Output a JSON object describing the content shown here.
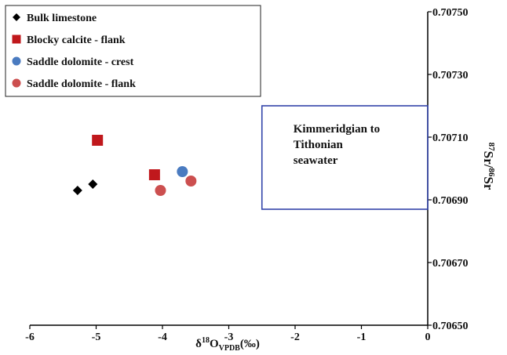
{
  "chart_data": {
    "type": "scatter",
    "xlabel": {
      "main": "δ",
      "sup": "18",
      "sym": "O",
      "sub": "VPDB",
      "unit": "(‰)"
    },
    "ylabel": {
      "sup1": "87",
      "a": "Sr/",
      "sup2": "86",
      "b": "Sr"
    },
    "xlim": [
      -6,
      0
    ],
    "ylim": [
      0.7065,
      0.7075
    ],
    "x_ticks": [
      -6,
      -5,
      -4,
      -3,
      -2,
      -1,
      0
    ],
    "x_tick_labels": [
      "-6",
      "-5",
      "-4",
      "-3",
      "-2",
      "-1",
      "0"
    ],
    "y_ticks": [
      0.7065,
      0.7067,
      0.7069,
      0.7071,
      0.7073,
      0.7075
    ],
    "y_tick_labels": [
      "0.70650",
      "0.70670",
      "0.70690",
      "0.70710",
      "0.70730",
      "0.70750"
    ],
    "legend_position": "top-left",
    "series": [
      {
        "name": "Bulk limestone",
        "marker": "diamond",
        "color": "#000000",
        "points": [
          {
            "x": -5.28,
            "y": 0.70693
          },
          {
            "x": -5.05,
            "y": 0.70695
          }
        ]
      },
      {
        "name": "Blocky calcite - flank",
        "marker": "square",
        "color": "#c0181c",
        "points": [
          {
            "x": -4.98,
            "y": 0.70709
          },
          {
            "x": -4.12,
            "y": 0.70698
          }
        ]
      },
      {
        "name": "Saddle dolomite - crest",
        "marker": "circle",
        "color": "#4a7bc0",
        "points": [
          {
            "x": -3.7,
            "y": 0.70699
          }
        ]
      },
      {
        "name": "Saddle dolomite - flank",
        "marker": "circle",
        "color": "#cc4f4f",
        "points": [
          {
            "x": -4.03,
            "y": 0.70693
          },
          {
            "x": -3.57,
            "y": 0.70696
          }
        ]
      }
    ],
    "annotation": {
      "lines": [
        "Kimmeridgian to",
        "Tithonian",
        "seawater"
      ],
      "box_x": [
        -2.5,
        0
      ],
      "box_y": [
        0.70687,
        0.7072
      ],
      "color": "#3344aa"
    }
  }
}
